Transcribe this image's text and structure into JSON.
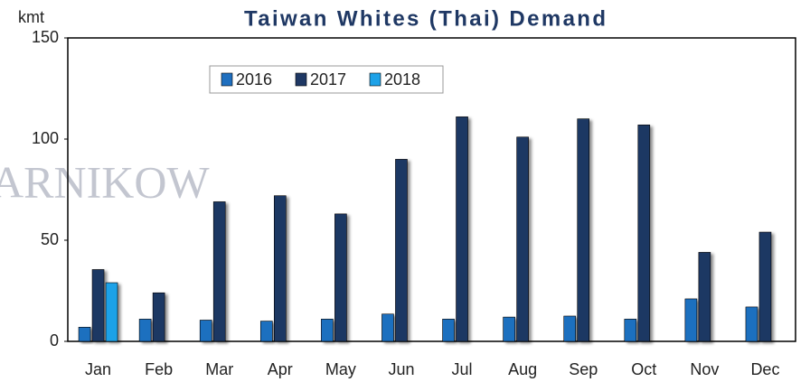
{
  "chart_data": {
    "type": "bar",
    "title": "Taiwan Whites (Thai) Demand",
    "y_label": "kmt",
    "watermark": "ARNIKOW",
    "categories": [
      "Jan",
      "Feb",
      "Mar",
      "Apr",
      "May",
      "Jun",
      "Jul",
      "Aug",
      "Sep",
      "Oct",
      "Nov",
      "Dec"
    ],
    "series": [
      {
        "name": "2016",
        "color": "#1f6fbf",
        "values": [
          7,
          11,
          10.5,
          10,
          11,
          13.5,
          11,
          12,
          12.5,
          11,
          21,
          17
        ]
      },
      {
        "name": "2017",
        "color": "#1f3864",
        "values": [
          35.5,
          24,
          69,
          72,
          63,
          90,
          111,
          101,
          110,
          107,
          44,
          54
        ]
      },
      {
        "name": "2018",
        "color": "#1ea2e8",
        "values": [
          29,
          null,
          null,
          null,
          null,
          null,
          null,
          null,
          null,
          null,
          null,
          null
        ]
      }
    ],
    "ylim": [
      0,
      150
    ],
    "yticks": [
      0,
      50,
      100,
      150
    ],
    "legend": "top-left"
  }
}
